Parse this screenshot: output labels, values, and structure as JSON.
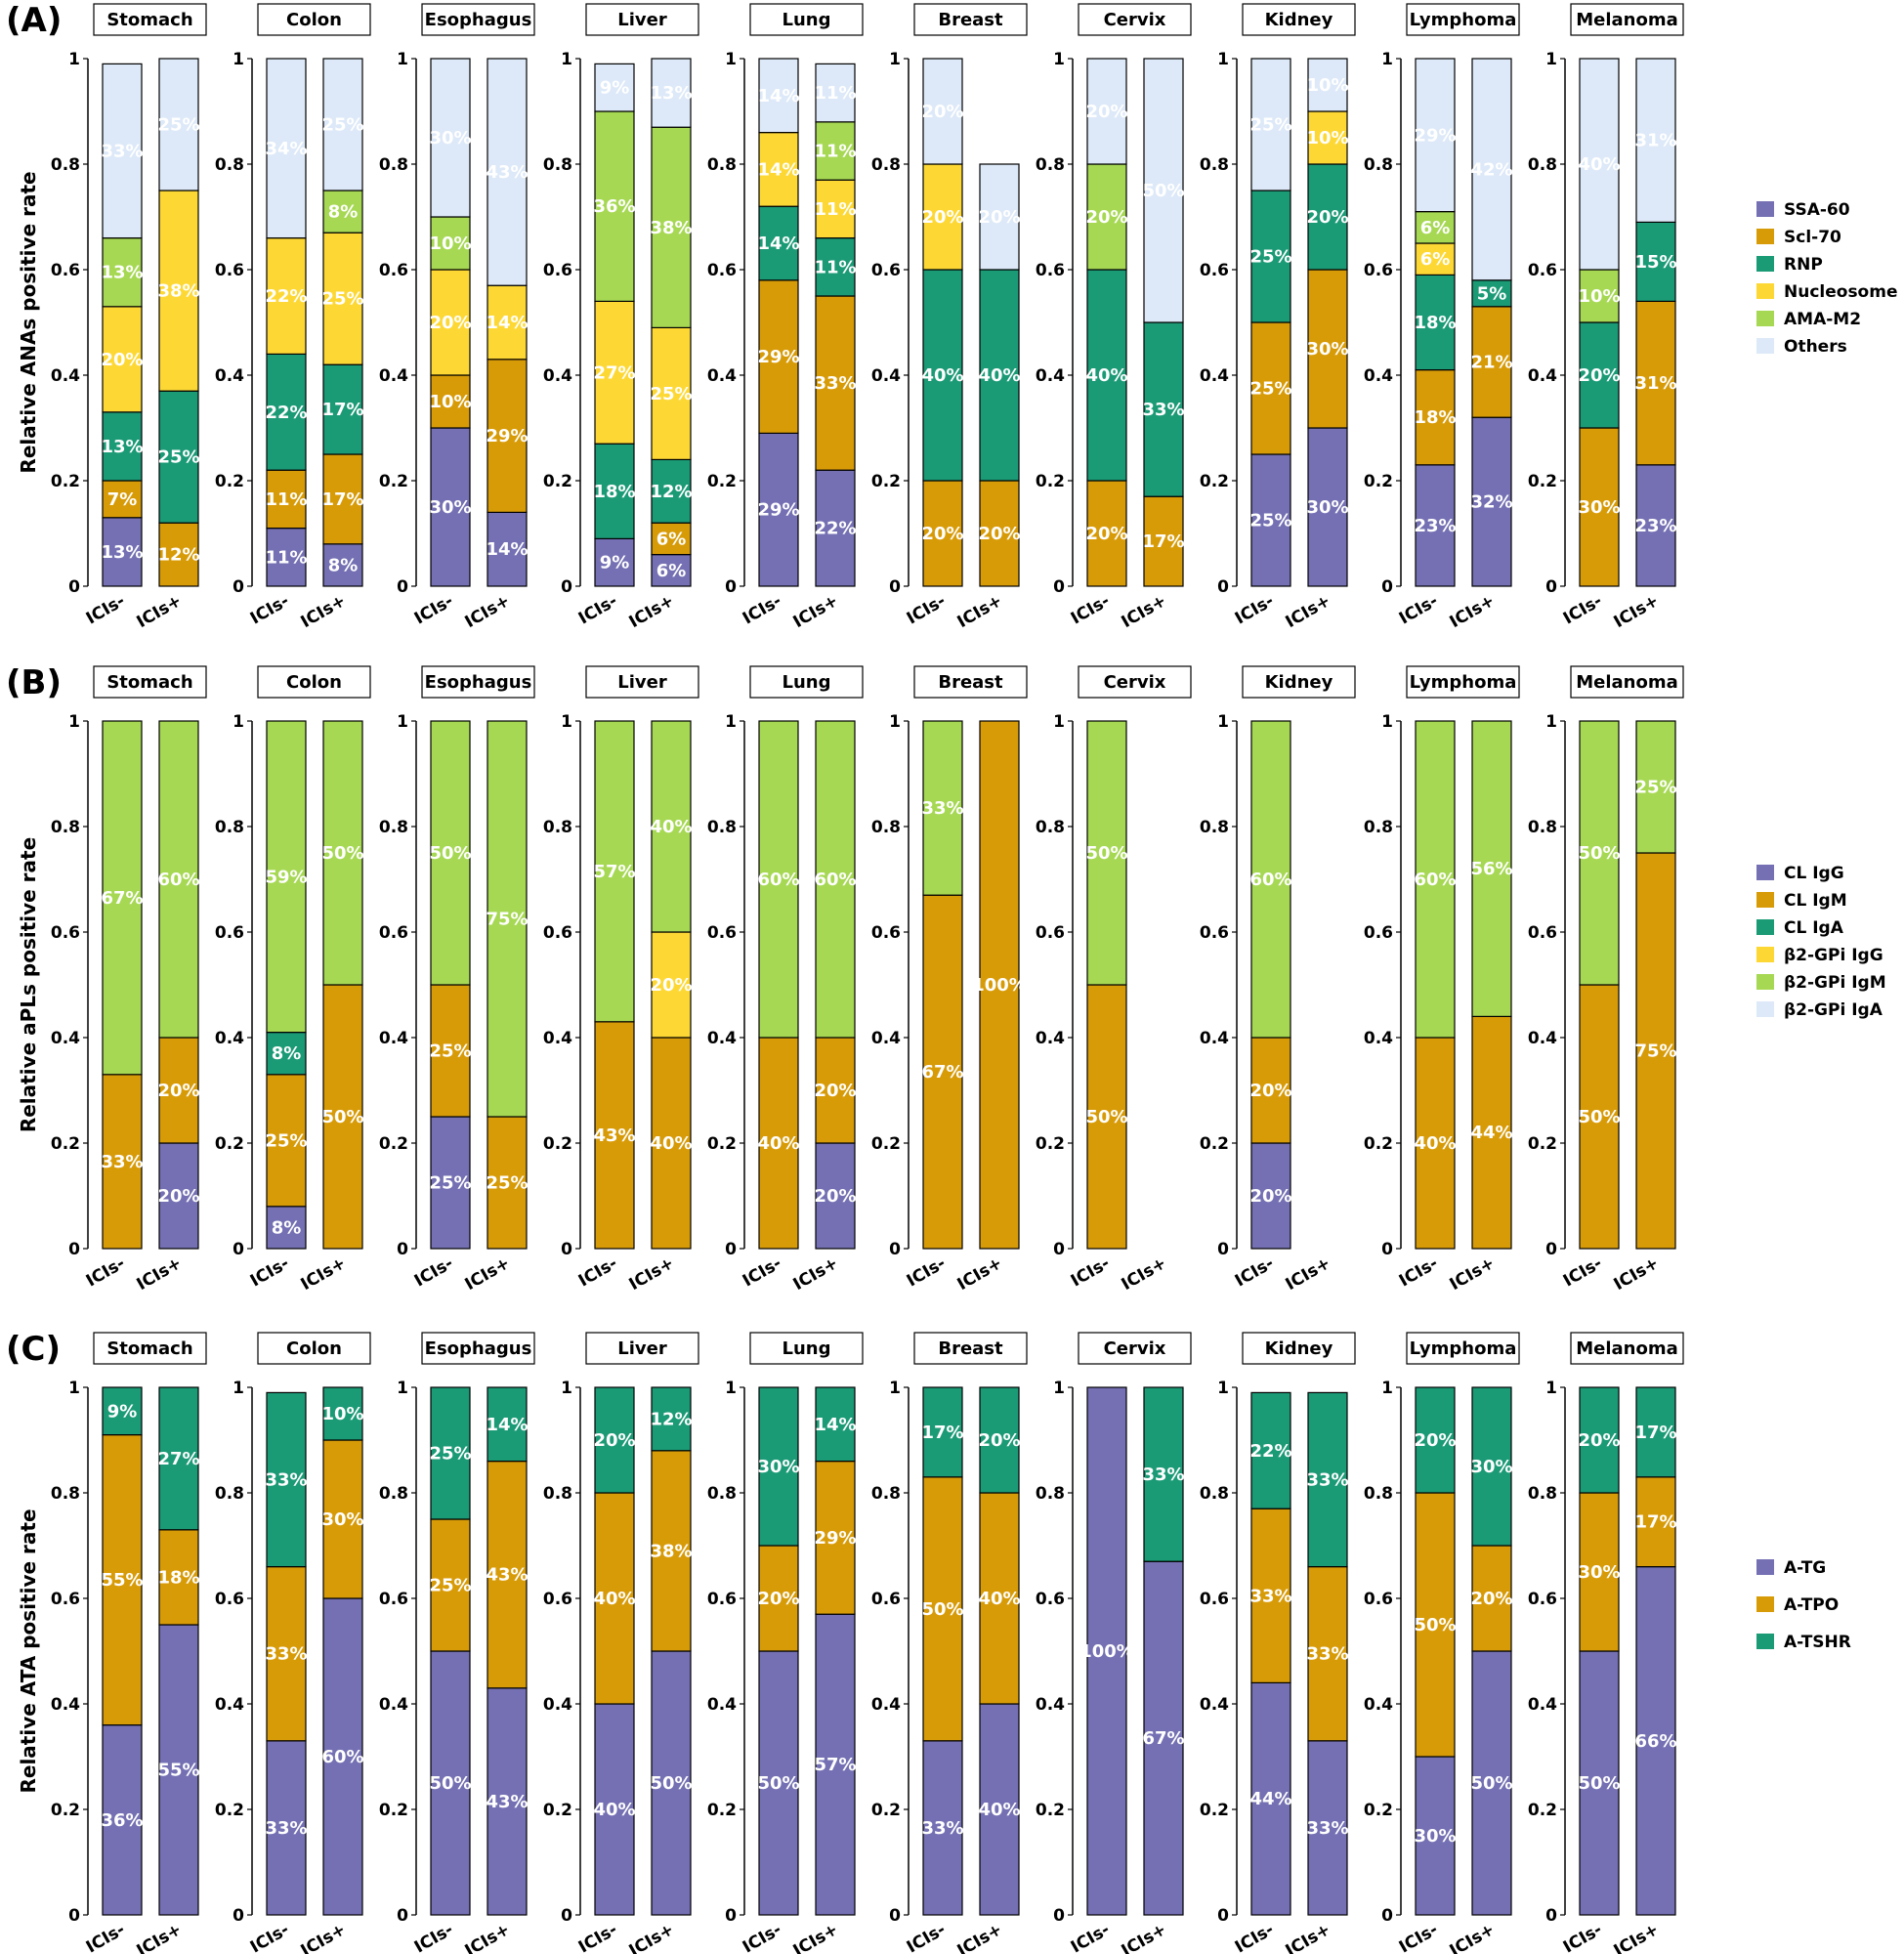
{
  "colors": {
    "purple": "#7470b3",
    "orange": "#d89b08",
    "teal": "#1b9a76",
    "yellow": "#fdd835",
    "lightgreen": "#a6d853",
    "lightblue": "#dde9f8"
  },
  "categories": [
    "ICIs-",
    "ICIs+"
  ],
  "chart_data": [
    {
      "type": "bar",
      "stacked": true,
      "panel_label": "(A)",
      "ylabel": "Relative ANAs positive rate",
      "ylim": [
        0,
        1
      ],
      "yticks": [
        "0",
        "0.2",
        "0.4",
        "0.6",
        "0.8",
        "1"
      ],
      "legend": {
        "placement": "right",
        "entries": [
          "SSA-60",
          "Scl-70",
          "RNP",
          "Nucleosome",
          "AMA-M2",
          "Others"
        ],
        "colors": [
          "#7470b3",
          "#d89b08",
          "#1b9a76",
          "#fdd835",
          "#a6d853",
          "#dde9f8"
        ]
      },
      "x": [
        "ICIs-",
        "ICIs+"
      ],
      "facets": [
        {
          "name": "Stomach",
          "bars": [
            [
              13,
              7,
              13,
              20,
              13,
              33
            ],
            [
              0,
              12,
              25,
              38,
              0,
              25
            ]
          ]
        },
        {
          "name": "Colon",
          "bars": [
            [
              11,
              11,
              22,
              22,
              0,
              34
            ],
            [
              8,
              17,
              17,
              25,
              8,
              25
            ]
          ]
        },
        {
          "name": "Esophagus",
          "bars": [
            [
              30,
              10,
              0,
              20,
              10,
              30
            ],
            [
              14,
              29,
              0,
              14,
              0,
              43
            ]
          ]
        },
        {
          "name": "Liver",
          "bars": [
            [
              9,
              0,
              18,
              27,
              36,
              9
            ],
            [
              6,
              6,
              12,
              25,
              38,
              13
            ]
          ]
        },
        {
          "name": "Lung",
          "bars": [
            [
              29,
              29,
              14,
              14,
              0,
              14
            ],
            [
              22,
              33,
              11,
              11,
              11,
              11
            ]
          ]
        },
        {
          "name": "Breast",
          "bars": [
            [
              0,
              20,
              40,
              20,
              0,
              20
            ],
            [
              0,
              20,
              40,
              0,
              0,
              20
            ]
          ]
        },
        {
          "name": "Cervix",
          "bars": [
            [
              0,
              20,
              40,
              0,
              20,
              20
            ],
            [
              0,
              17,
              33,
              0,
              0,
              50
            ]
          ]
        },
        {
          "name": "Kidney",
          "bars": [
            [
              25,
              25,
              25,
              0,
              0,
              25
            ],
            [
              30,
              30,
              20,
              10,
              0,
              10
            ]
          ]
        },
        {
          "name": "Lymphoma",
          "bars": [
            [
              23,
              18,
              18,
              6,
              6,
              29
            ],
            [
              32,
              21,
              5,
              0,
              0,
              42
            ]
          ]
        },
        {
          "name": "Melanoma",
          "bars": [
            [
              0,
              30,
              20,
              0,
              10,
              40
            ],
            [
              23,
              31,
              15,
              0,
              0,
              31
            ]
          ]
        }
      ]
    },
    {
      "type": "bar",
      "stacked": true,
      "panel_label": "(B)",
      "ylabel": "Relative aPLs positive rate",
      "ylim": [
        0,
        1
      ],
      "yticks": [
        "0",
        "0.2",
        "0.4",
        "0.6",
        "0.8",
        "1"
      ],
      "legend": {
        "placement": "right",
        "entries": [
          "CL IgG",
          "CL IgM",
          "CL IgA",
          "β2-GPi IgG",
          "β2-GPi IgM",
          "β2-GPi IgA"
        ],
        "colors": [
          "#7470b3",
          "#d89b08",
          "#1b9a76",
          "#fdd835",
          "#a6d853",
          "#dde9f8"
        ]
      },
      "x": [
        "ICIs-",
        "ICIs+"
      ],
      "facets": [
        {
          "name": "Stomach",
          "bars": [
            [
              0,
              33,
              0,
              0,
              67,
              0
            ],
            [
              20,
              20,
              0,
              0,
              60,
              0
            ]
          ]
        },
        {
          "name": "Colon",
          "bars": [
            [
              8,
              25,
              8,
              0,
              59,
              0
            ],
            [
              0,
              50,
              0,
              0,
              50,
              0
            ]
          ]
        },
        {
          "name": "Esophagus",
          "bars": [
            [
              25,
              25,
              0,
              0,
              50,
              0
            ],
            [
              0,
              25,
              0,
              0,
              75,
              0
            ]
          ]
        },
        {
          "name": "Liver",
          "bars": [
            [
              0,
              43,
              0,
              0,
              57,
              0
            ],
            [
              0,
              40,
              0,
              20,
              40,
              0
            ]
          ]
        },
        {
          "name": "Lung",
          "bars": [
            [
              0,
              40,
              0,
              0,
              60,
              0
            ],
            [
              20,
              20,
              0,
              0,
              60,
              0
            ]
          ]
        },
        {
          "name": "Breast",
          "bars": [
            [
              0,
              67,
              0,
              0,
              33,
              0
            ],
            [
              0,
              100,
              0,
              0,
              0,
              0
            ]
          ]
        },
        {
          "name": "Cervix",
          "bars": [
            [
              0,
              50,
              0,
              0,
              50,
              0
            ],
            [
              0,
              0,
              0,
              0,
              0,
              0
            ]
          ]
        },
        {
          "name": "Kidney",
          "bars": [
            [
              20,
              20,
              0,
              0,
              60,
              0
            ],
            [
              0,
              0,
              0,
              0,
              0,
              0
            ]
          ]
        },
        {
          "name": "Lymphoma",
          "bars": [
            [
              0,
              40,
              0,
              0,
              60,
              0
            ],
            [
              0,
              44,
              0,
              0,
              56,
              0
            ]
          ]
        },
        {
          "name": "Melanoma",
          "bars": [
            [
              0,
              50,
              0,
              0,
              50,
              0
            ],
            [
              0,
              75,
              0,
              0,
              25,
              0
            ]
          ]
        }
      ]
    },
    {
      "type": "bar",
      "stacked": true,
      "panel_label": "(C)",
      "ylabel": "Relative ATA positive rate",
      "ylim": [
        0,
        1
      ],
      "yticks": [
        "0",
        "0.2",
        "0.4",
        "0.6",
        "0.8",
        "1"
      ],
      "legend": {
        "placement": "right",
        "entries": [
          "A-TG",
          "A-TPO",
          "A-TSHR"
        ],
        "colors": [
          "#7470b3",
          "#d89b08",
          "#1b9a76"
        ]
      },
      "x": [
        "ICIs-",
        "ICIs+"
      ],
      "facets": [
        {
          "name": "Stomach",
          "bars": [
            [
              36,
              55,
              9
            ],
            [
              55,
              18,
              27
            ]
          ]
        },
        {
          "name": "Colon",
          "bars": [
            [
              33,
              33,
              33
            ],
            [
              60,
              30,
              10
            ]
          ]
        },
        {
          "name": "Esophagus",
          "bars": [
            [
              50,
              25,
              25
            ],
            [
              43,
              43,
              14
            ]
          ]
        },
        {
          "name": "Liver",
          "bars": [
            [
              40,
              40,
              20
            ],
            [
              50,
              38,
              12
            ]
          ]
        },
        {
          "name": "Lung",
          "bars": [
            [
              50,
              20,
              30
            ],
            [
              57,
              29,
              14
            ]
          ]
        },
        {
          "name": "Breast",
          "bars": [
            [
              33,
              50,
              17
            ],
            [
              40,
              40,
              20
            ]
          ]
        },
        {
          "name": "Cervix",
          "bars": [
            [
              100,
              0,
              0
            ],
            [
              67,
              0,
              33
            ]
          ]
        },
        {
          "name": "Kidney",
          "bars": [
            [
              44,
              33,
              22
            ],
            [
              33,
              33,
              33
            ]
          ]
        },
        {
          "name": "Lymphoma",
          "bars": [
            [
              30,
              50,
              20
            ],
            [
              50,
              20,
              30
            ]
          ]
        },
        {
          "name": "Melanoma",
          "bars": [
            [
              50,
              30,
              20
            ],
            [
              66,
              17,
              17
            ]
          ]
        }
      ]
    }
  ]
}
